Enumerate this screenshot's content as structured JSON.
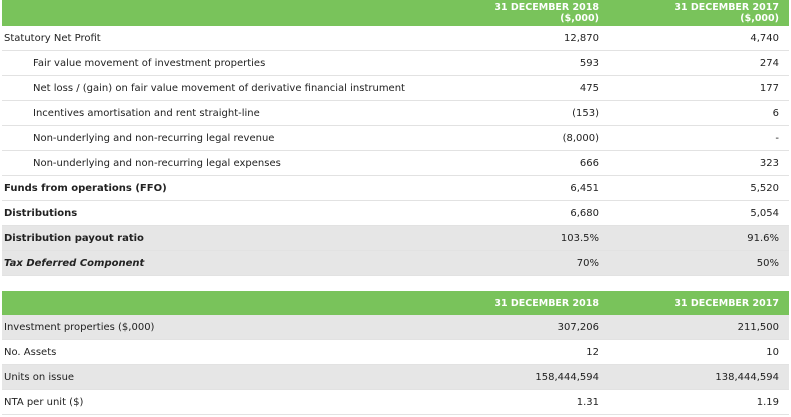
{
  "table1": {
    "header": {
      "col1": [
        "31 DECEMBER 2018",
        "($,000)"
      ],
      "col2": [
        "31 DECEMBER 2017",
        "($,000)"
      ]
    },
    "rows": [
      {
        "label": "Statutory Net Profit",
        "v2018": "12,870",
        "v2017": "4,740"
      },
      {
        "label": "Fair value movement of investment properties",
        "v2018": "593",
        "v2017": "274"
      },
      {
        "label": "Net loss / (gain) on fair value movement of derivative financial instrument",
        "v2018": "475",
        "v2017": "177"
      },
      {
        "label": "Incentives amortisation and rent straight-line",
        "v2018": "(153)",
        "v2017": "6"
      },
      {
        "label": "Non-underlying and non-recurring legal revenue",
        "v2018": "(8,000)",
        "v2017": "-"
      },
      {
        "label": "Non-underlying and non-recurring legal expenses",
        "v2018": "666",
        "v2017": "323"
      },
      {
        "label": "Funds from operations (FFO)",
        "v2018": "6,451",
        "v2017": "5,520"
      },
      {
        "label": "Distributions",
        "v2018": "6,680",
        "v2017": "5,054"
      },
      {
        "label": "Distribution payout ratio",
        "v2018": "103.5%",
        "v2017": "91.6%"
      },
      {
        "label": "Tax Deferred Component",
        "v2018": "70%",
        "v2017": "50%"
      }
    ]
  },
  "table2": {
    "header": {
      "col1": "31 DECEMBER 2018",
      "col2": "31 DECEMBER 2017"
    },
    "rows": [
      {
        "label": "Investment properties ($,000)",
        "v2018": "307,206",
        "v2017": "211,500"
      },
      {
        "label": "No. Assets",
        "v2018": "12",
        "v2017": "10"
      },
      {
        "label": "Units on issue",
        "v2018": "158,444,594",
        "v2017": "138,444,594"
      },
      {
        "label": "NTA per unit ($)",
        "v2018": "1.31",
        "v2017": "1.19"
      }
    ]
  }
}
